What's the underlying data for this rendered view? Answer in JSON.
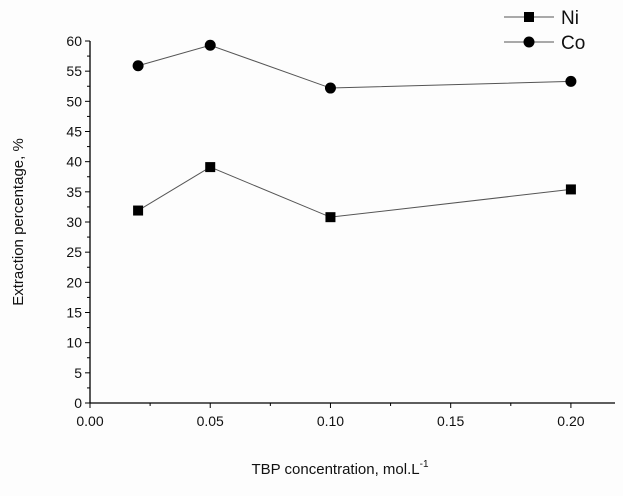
{
  "chart_data": {
    "type": "line",
    "title": "",
    "xlabel": "TBP concentration, mol.L",
    "xlabel_superscript": "-1",
    "ylabel": "Extraction percentage, %",
    "xlim": [
      0,
      0.22
    ],
    "ylim": [
      0,
      60
    ],
    "xticks": [
      "0.00",
      "0.05",
      "0.10",
      "0.15",
      "0.20"
    ],
    "yticks": [
      "0",
      "5",
      "10",
      "15",
      "20",
      "25",
      "30",
      "35",
      "40",
      "45",
      "50",
      "55",
      "60"
    ],
    "x": [
      0.02,
      0.05,
      0.1,
      0.2
    ],
    "series": [
      {
        "name": "Ni",
        "marker": "square",
        "values": [
          31.9,
          39.1,
          30.8,
          35.4
        ]
      },
      {
        "name": "Co",
        "marker": "circle",
        "values": [
          55.9,
          59.3,
          52.2,
          53.3
        ]
      }
    ],
    "grid": false,
    "legend": "top-right",
    "colors": {
      "line": "#555555",
      "marker": "#000000",
      "axis": "#000000"
    }
  }
}
